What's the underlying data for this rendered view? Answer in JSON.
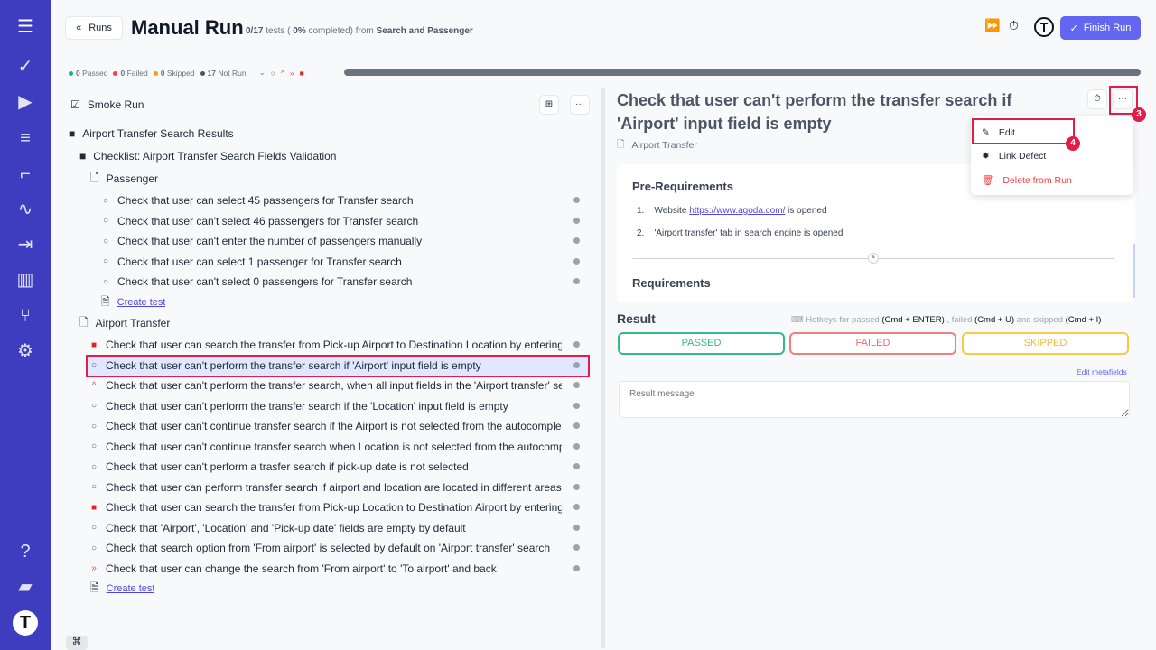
{
  "header": {
    "back_label": "Runs",
    "title": "Manual Run",
    "progress_count": "0/17",
    "tests_word": "tests (",
    "percent": "0%",
    "completed_from": "completed) from",
    "source": "Search and Passenger",
    "finish_label": "Finish Run"
  },
  "stats": {
    "passed": "0",
    "passed_label": "Passed",
    "failed": "0",
    "failed_label": "Failed",
    "skipped": "0",
    "skipped_label": "Skipped",
    "not_run": "17",
    "not_run_label": "Not Run",
    "progress_fraction": 0
  },
  "colors": {
    "sidebar": "#3f3dbf",
    "accent": "#6366f1",
    "passed": "#10b981",
    "failed": "#ef4444",
    "skipped": "#f59e0b"
  },
  "tree": {
    "run_name": "Smoke Run",
    "root": "Airport Transfer Search Results",
    "checklist": "Checklist: Airport Transfer Search Fields Validation",
    "suite1": "Passenger",
    "suite1_tests": [
      {
        "title": "Check that user can select 45 passengers for Transfer search",
        "priority": "normal"
      },
      {
        "title": "Check that user can't select 46 passengers for Transfer search",
        "priority": "normal"
      },
      {
        "title": "Check that user can't enter the number of passengers manually",
        "priority": "normal"
      },
      {
        "title": "Check that user can select 1 passenger for Transfer search",
        "priority": "normal"
      },
      {
        "title": "Check that user can't select 0 passengers for Transfer search",
        "priority": "normal"
      }
    ],
    "create_test": "Create test",
    "suite2": "Airport Transfer",
    "suite2_tests": [
      {
        "title": "Check that user can search the transfer from Pick-up Airport to Destination Location by entering",
        "priority": "blocker"
      },
      {
        "title": "Check that user can't perform the transfer search if 'Airport' input field is empty",
        "priority": "normal",
        "selected": true
      },
      {
        "title": "Check that user can't perform the transfer search, when all input fields in the 'Airport transfer' se",
        "priority": "high"
      },
      {
        "title": "Check that user can't perform the transfer search if the 'Location' input field is empty",
        "priority": "normal"
      },
      {
        "title": "Check that user can't continue transfer search if the Airport is not selected from the autocomple",
        "priority": "normal"
      },
      {
        "title": "Check that user can't continue transfer search when Location is not selected from the autocomp",
        "priority": "normal"
      },
      {
        "title": "Check that user can't perform a trasfer search if pick-up date is not selected",
        "priority": "normal"
      },
      {
        "title": "Check that user can perform transfer search if airport and location are located in different areas",
        "priority": "normal"
      },
      {
        "title": "Check that user can search the transfer from Pick-up Location to Destination Airport by entering",
        "priority": "blocker"
      },
      {
        "title": "Check that 'Airport', 'Location' and 'Pick-up date' fields are empty by default",
        "priority": "normal"
      },
      {
        "title": "Check that search option from 'From airport' is selected by default on 'Airport transfer' search",
        "priority": "normal"
      },
      {
        "title": "Check that user can change the search from 'From airport' to 'To airport' and back",
        "priority": "critical"
      }
    ]
  },
  "detail": {
    "title": "Check that user can't perform the transfer search if 'Airport' input field is empty",
    "suite": "Airport Transfer",
    "pre_heading": "Pre-Requirements",
    "pre1_a": "Website",
    "pre1_link": "https://www.agoda.com/",
    "pre1_b": "is opened",
    "pre2": "'Airport transfer' tab in search engine is opened",
    "req_heading": "Requirements"
  },
  "menu": {
    "edit": "Edit",
    "link_defect": "Link Defect",
    "delete": "Delete from Run"
  },
  "annotations": {
    "a3": "3",
    "a4": "4"
  },
  "result": {
    "heading": "Result",
    "hotkeys_a": "Hotkeys for passed",
    "hk1": "(Cmd + ENTER)",
    "hotkeys_b": ", failed",
    "hk2": "(Cmd + U)",
    "hotkeys_c": "and skipped",
    "hk3": "(Cmd + I)",
    "passed": "PASSED",
    "failed": "FAILED",
    "skipped": "SKIPPED",
    "edit_metafields": "Edit metafields",
    "message_placeholder": "Result message"
  }
}
